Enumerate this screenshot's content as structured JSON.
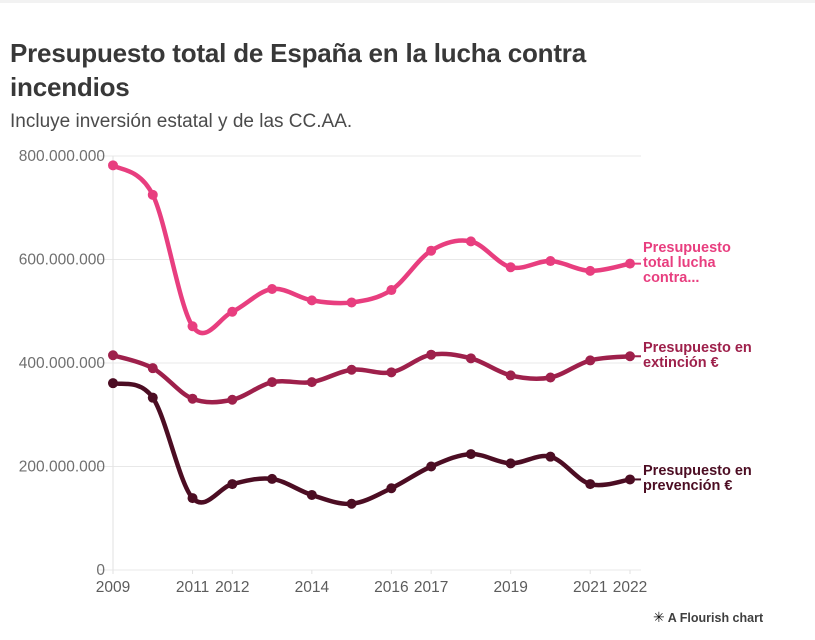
{
  "chart_data": {
    "type": "line",
    "title": "Presupuesto total de España en la lucha contra incendios",
    "subtitle": "Incluye inversión estatal y de las CC.AA.",
    "x": [
      2009,
      2010,
      2011,
      2012,
      2013,
      2014,
      2015,
      2016,
      2017,
      2018,
      2019,
      2020,
      2021,
      2022
    ],
    "series": [
      {
        "name": "Presupuesto total lucha contra…",
        "legend_lines": [
          "Presupuesto",
          "total lucha",
          "contra..."
        ],
        "color": "#e83e7f",
        "values": [
          782000000,
          725000000,
          471000000,
          499000000,
          543000000,
          521000000,
          517000000,
          541000000,
          617000000,
          635000000,
          585000000,
          597000000,
          578000000,
          592000000
        ]
      },
      {
        "name": "Presupuesto en extinción €",
        "legend_lines": [
          "Presupuesto en",
          "extinción €"
        ],
        "color": "#9e204b",
        "values": [
          415000000,
          390000000,
          331000000,
          329000000,
          363000000,
          363000000,
          387000000,
          382000000,
          416000000,
          409000000,
          376000000,
          372000000,
          405000000,
          413000000
        ]
      },
      {
        "name": "Presupuesto en prevención €",
        "legend_lines": [
          "Presupuesto en",
          "prevención €"
        ],
        "color": "#4c0d23",
        "values": [
          361000000,
          333000000,
          139000000,
          166000000,
          176000000,
          145000000,
          128000000,
          158000000,
          200000000,
          224000000,
          206000000,
          219000000,
          166000000,
          175000000
        ]
      }
    ],
    "y_axis": {
      "range": [
        0,
        800000000
      ],
      "ticks": [
        {
          "value": 0,
          "label": "0"
        },
        {
          "value": 200000000,
          "label": "200.000.000"
        },
        {
          "value": 400000000,
          "label": "400.000.000"
        },
        {
          "value": 600000000,
          "label": "600.000.000"
        },
        {
          "value": 800000000,
          "label": "800.000.000"
        }
      ]
    },
    "x_axis": {
      "shown_labels": [
        "2009",
        "2011",
        "2012",
        "2014",
        "2016",
        "2017",
        "2019",
        "2021",
        "2022"
      ]
    },
    "grid": "horizontal",
    "legend_position": "right-of-line-ends"
  },
  "footer": {
    "star": "✳",
    "attribution": "A Flourish chart"
  },
  "colors": {
    "gridline": "#e8e8e8",
    "axis_line": "#e2e2e2"
  }
}
